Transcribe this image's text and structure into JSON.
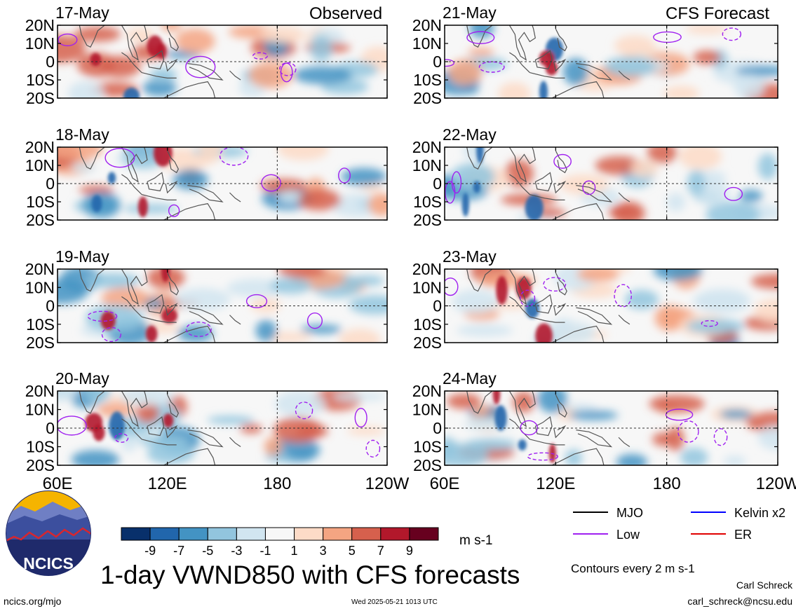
{
  "header": {
    "observed_label": "Observed",
    "forecast_label": "CFS Forecast"
  },
  "chart_data": {
    "type": "heatmap",
    "title": "1-day VWND850 with CFS forecasts",
    "variable": "VWND850",
    "unit": "m s-1",
    "x_axis": {
      "ticks": [
        "60E",
        "120E",
        "180",
        "120W"
      ],
      "values": [
        60,
        120,
        180,
        240
      ],
      "range": [
        60,
        240
      ]
    },
    "y_axis": {
      "ticks": [
        "20N",
        "10N",
        "0",
        "10S",
        "20S"
      ],
      "values": [
        20,
        10,
        0,
        -10,
        -20
      ],
      "range": [
        -20,
        20
      ]
    },
    "colorbar": {
      "labels": [
        "-9",
        "-7",
        "-5",
        "-3",
        "-1",
        "1",
        "3",
        "5",
        "7",
        "9"
      ],
      "colors": [
        "#08306b",
        "#2166ac",
        "#4393c3",
        "#92c5de",
        "#d1e5f0",
        "#f7f7f7",
        "#fddbc7",
        "#f4a582",
        "#d6604d",
        "#b2182b",
        "#67001f"
      ]
    },
    "panels": [
      {
        "column": "observed",
        "date": "17-May"
      },
      {
        "column": "observed",
        "date": "18-May"
      },
      {
        "column": "observed",
        "date": "19-May"
      },
      {
        "column": "observed",
        "date": "20-May"
      },
      {
        "column": "forecast",
        "date": "21-May"
      },
      {
        "column": "forecast",
        "date": "22-May"
      },
      {
        "column": "forecast",
        "date": "23-May"
      },
      {
        "column": "forecast",
        "date": "24-May"
      }
    ],
    "contour_legend": [
      {
        "label": "MJO",
        "color": "#000000"
      },
      {
        "label": "Kelvin x2",
        "color": "#0000ff"
      },
      {
        "label": "Low",
        "color": "#a020f0"
      },
      {
        "label": "ER",
        "color": "#e00000"
      }
    ],
    "contour_note": "Contours every 2 m s-1"
  },
  "footer": {
    "logo_text": "NCICS",
    "url": "ncics.org/mjo",
    "timestamp": "Wed 2025-05-21 1013 UTC",
    "author": "Carl Schreck",
    "email": "carl_schreck@ncsu.edu"
  }
}
